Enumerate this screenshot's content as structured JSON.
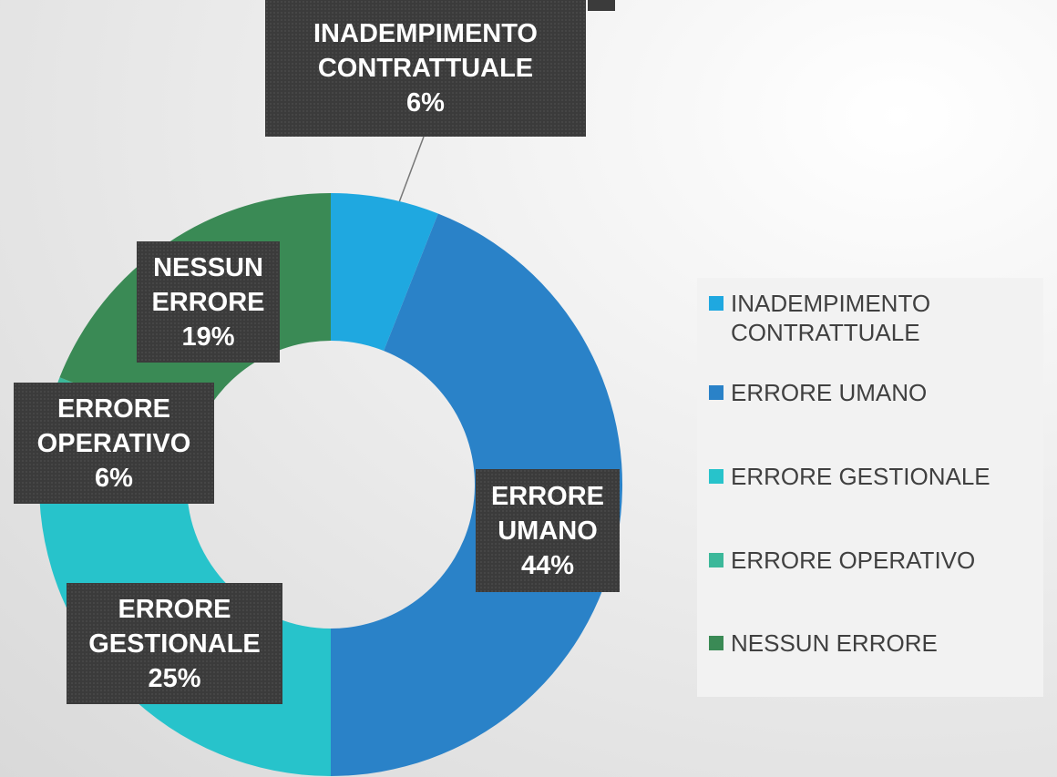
{
  "chart_data": {
    "type": "donut",
    "categories": [
      "INADEMPIMENTO CONTRATTUALE",
      "ERRORE UMANO",
      "ERRORE GESTIONALE",
      "ERRORE OPERATIVO",
      "NESSUN ERRORE"
    ],
    "values": [
      6,
      44,
      25,
      6,
      19
    ],
    "value_labels": [
      "6%",
      "44%",
      "25%",
      "6%",
      "19%"
    ],
    "colors": [
      "#1fa8e0",
      "#2a82c8",
      "#27c3cb",
      "#3cb89a",
      "#3a8a55"
    ],
    "legend": "right"
  }
}
